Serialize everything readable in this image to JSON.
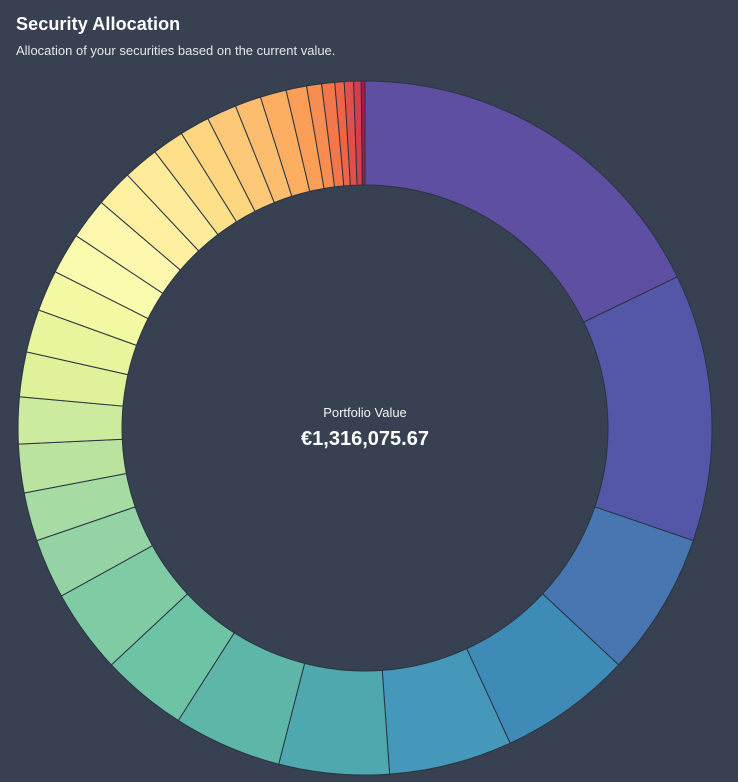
{
  "header": {
    "title": "Security Allocation",
    "subtitle": "Allocation of your securities based on the current value."
  },
  "center": {
    "label": "Portfolio Value",
    "value": "€1,316,075.67"
  },
  "chart_data": {
    "type": "pie",
    "variant": "donut",
    "title": "Security Allocation",
    "legend": "none",
    "start_angle_deg": 0,
    "direction": "clockwise",
    "values": [
      20.5,
      14.3,
      7.7,
      7.1,
      6.6,
      5.9,
      5.8,
      4.6,
      4.5,
      3.2,
      2.6,
      2.6,
      2.5,
      2.4,
      2.3,
      2.2,
      2.2,
      2.2,
      2.0,
      1.9,
      1.7,
      1.6,
      1.6,
      1.4,
      1.4,
      1.1,
      0.8,
      0.7,
      0.5,
      0.5,
      0.4,
      0.2
    ],
    "colors": [
      "#5e4fa2",
      "#5457a8",
      "#4776b0",
      "#3f8bb8",
      "#4598b9",
      "#4ea8ad",
      "#5db6a8",
      "#6cc4a4",
      "#7fcca4",
      "#94d3a4",
      "#a6dba4",
      "#bae3a0",
      "#cdeb9e",
      "#dff299",
      "#e9f59c",
      "#f2f9a2",
      "#f9fbad",
      "#fef8ae",
      "#fff0a1",
      "#feeb9b",
      "#fee08b",
      "#fed680",
      "#fdc877",
      "#fdbd6f",
      "#fdae61",
      "#fb9e58",
      "#f88d51",
      "#f4764a",
      "#ee6445",
      "#e04f4b",
      "#d53e4f",
      "#b21546"
    ]
  }
}
